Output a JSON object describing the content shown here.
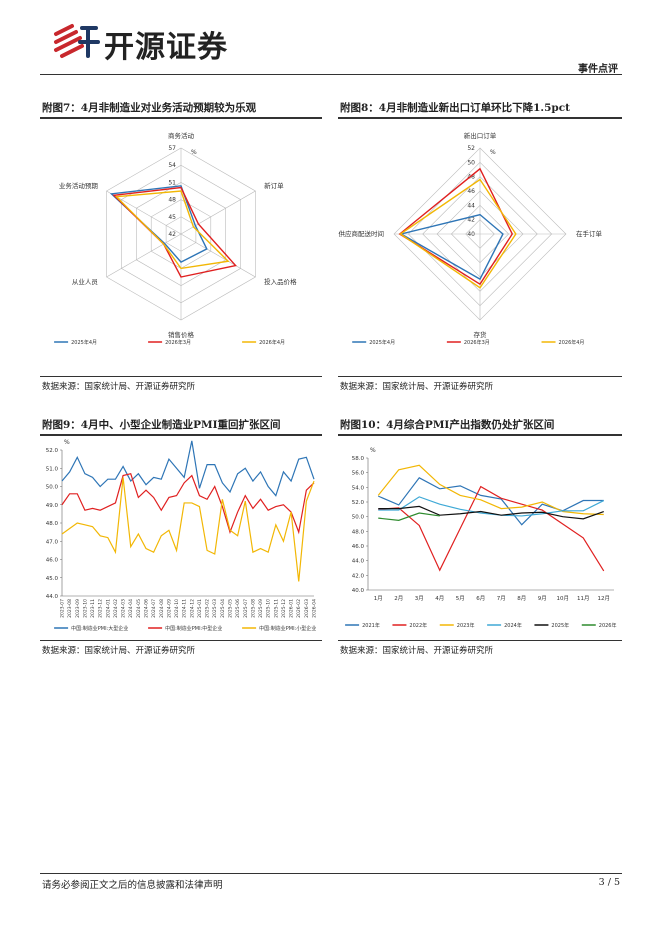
{
  "header": {
    "logo": "开源证券",
    "tag": "事件点评"
  },
  "chart_data": [
    {
      "type": "radar",
      "title": "附图7：4月非制造业对业务活动预期较为乐观",
      "source": "数据来源：国家统计局、开源证券研究所",
      "unit": "%",
      "axes": [
        "商务活动",
        "新订单",
        "投入品价格",
        "销售价格",
        "从业人员",
        "业务活动预期"
      ],
      "rlim": [
        42,
        57
      ],
      "rticks": [
        42,
        45,
        48,
        51,
        54,
        57
      ],
      "series": [
        {
          "name": "2025年4月",
          "color": "#2e75b6",
          "values": [
            50.4,
            44.9,
            47.2,
            46.9,
            45.3,
            56.0
          ]
        },
        {
          "name": "2026年3月",
          "color": "#e02020",
          "values": [
            50.1,
            45.5,
            53.0,
            49.5,
            45.5,
            55.5
          ]
        },
        {
          "name": "2026年4月",
          "color": "#f2b705",
          "values": [
            49.5,
            44.5,
            51.5,
            48.0,
            45.5,
            55.0
          ]
        }
      ]
    },
    {
      "type": "radar",
      "title": "附图8：4月非制造业新出口订单环比下降1.5pct",
      "source": "数据来源：国家统计局、开源证券研究所",
      "unit": "%",
      "axes": [
        "新出口订单",
        "在手订单",
        "存货",
        "供应商配送时间"
      ],
      "rlim": [
        40,
        52
      ],
      "rticks": [
        40,
        42,
        44,
        46,
        48,
        50,
        52
      ],
      "series": [
        {
          "name": "2025年4月",
          "color": "#2e75b6",
          "values": [
            42.7,
            43.2,
            46.3,
            51.0
          ]
        },
        {
          "name": "2026年3月",
          "color": "#e02020",
          "values": [
            49.1,
            44.5,
            47.0,
            51.2
          ]
        },
        {
          "name": "2026年4月",
          "color": "#f2b705",
          "values": [
            47.6,
            45.0,
            47.5,
            51.1
          ]
        }
      ]
    },
    {
      "type": "line",
      "title": "附图9：4月中、小型企业制造业PMI重回扩张区间",
      "source": "数据来源：国家统计局、开源证券研究所",
      "unit": "%",
      "rotate_x": true,
      "categories": [
        "2023-07",
        "2023-08",
        "2023-09",
        "2023-10",
        "2023-11",
        "2023-12",
        "2024-01",
        "2024-02",
        "2024-03",
        "2024-04",
        "2024-05",
        "2024-06",
        "2024-07",
        "2024-08",
        "2024-09",
        "2024-10",
        "2024-11",
        "2024-12",
        "2025-01",
        "2025-02",
        "2025-03",
        "2025-04",
        "2025-05",
        "2025-06",
        "2025-07",
        "2025-08",
        "2025-09",
        "2025-10",
        "2025-11",
        "2025-12",
        "2026-01",
        "2026-02",
        "2026-03",
        "2026-04"
      ],
      "ylim": [
        44,
        52
      ],
      "yticks": [
        {
          "value": 44,
          "label": "44.0"
        },
        {
          "value": 45,
          "label": "45.0"
        },
        {
          "value": 46,
          "label": "46.0"
        },
        {
          "value": 47,
          "label": "47.0"
        },
        {
          "value": 48,
          "label": "48.0"
        },
        {
          "value": 49,
          "label": "49.0"
        },
        {
          "value": 50,
          "label": "50.0"
        },
        {
          "value": 51,
          "label": "51.0"
        },
        {
          "value": 52,
          "label": "52.0"
        }
      ],
      "series": [
        {
          "name": "中国:制造业PMI:大型企业",
          "color": "#2e75b6",
          "values": [
            50.3,
            50.8,
            51.6,
            50.7,
            50.5,
            50.0,
            50.4,
            50.4,
            51.1,
            50.3,
            50.7,
            50.1,
            50.5,
            50.4,
            51.5,
            51.0,
            50.5,
            52.5,
            49.9,
            51.2,
            51.2,
            50.2,
            49.7,
            50.7,
            51.0,
            50.3,
            50.8,
            50.0,
            49.5,
            50.8,
            50.3,
            51.5,
            51.6,
            50.4
          ]
        },
        {
          "name": "中国:制造业PMI:中型企业",
          "color": "#e02020",
          "values": [
            49.0,
            49.6,
            49.6,
            48.7,
            48.8,
            48.7,
            48.9,
            49.1,
            50.6,
            50.7,
            49.4,
            49.8,
            49.4,
            48.7,
            49.4,
            49.5,
            50.2,
            50.6,
            49.5,
            49.3,
            50.0,
            48.9,
            47.5,
            48.6,
            49.5,
            48.8,
            49.3,
            48.7,
            48.9,
            49.0,
            48.6,
            47.5,
            49.8,
            50.2
          ]
        },
        {
          "name": "中国:制造业PMI:小型企业",
          "color": "#f2b705",
          "values": [
            47.4,
            47.7,
            48.0,
            47.9,
            47.8,
            47.3,
            47.2,
            46.4,
            50.5,
            46.7,
            47.4,
            46.6,
            46.4,
            47.3,
            47.6,
            46.5,
            49.1,
            49.1,
            48.9,
            46.5,
            46.3,
            49.3,
            47.6,
            47.3,
            49.2,
            46.4,
            46.6,
            46.4,
            47.9,
            47.0,
            48.6,
            44.8,
            49.2,
            50.3
          ]
        }
      ]
    },
    {
      "type": "line",
      "title": "附图10：4月综合PMI产出指数仍处扩张区间",
      "source": "数据来源：国家统计局、开源证券研究所",
      "unit": "%",
      "rotate_x": false,
      "categories": [
        "1月",
        "2月",
        "3月",
        "4月",
        "5月",
        "6月",
        "7月",
        "8月",
        "9月",
        "10月",
        "11月",
        "12月"
      ],
      "ylim": [
        40,
        58
      ],
      "yticks": [
        {
          "value": 40,
          "label": "40.0"
        },
        {
          "value": 42,
          "label": "42.0"
        },
        {
          "value": 44,
          "label": "44.0"
        },
        {
          "value": 46,
          "label": "46.0"
        },
        {
          "value": 48,
          "label": "48.0"
        },
        {
          "value": 50,
          "label": "50.0"
        },
        {
          "value": 52,
          "label": "52.0"
        },
        {
          "value": 54,
          "label": "54.0"
        },
        {
          "value": 56,
          "label": "56.0"
        },
        {
          "value": 58,
          "label": "58.0"
        }
      ],
      "series": [
        {
          "name": "2021年",
          "color": "#2e75b6",
          "values": [
            52.8,
            51.6,
            55.3,
            53.8,
            54.2,
            52.9,
            52.4,
            48.9,
            51.7,
            50.8,
            52.2,
            52.2
          ]
        },
        {
          "name": "2022年",
          "color": "#e02020",
          "values": [
            51.0,
            51.2,
            48.8,
            42.7,
            48.4,
            54.1,
            52.5,
            51.7,
            50.9,
            49.0,
            47.1,
            42.6
          ]
        },
        {
          "name": "2023年",
          "color": "#f2b705",
          "values": [
            52.9,
            56.4,
            57.0,
            54.4,
            52.9,
            52.3,
            51.1,
            51.3,
            52.0,
            50.7,
            50.4,
            50.3
          ]
        },
        {
          "name": "2024年",
          "color": "#3fa9d6",
          "values": [
            50.9,
            50.9,
            52.7,
            51.7,
            51.0,
            50.5,
            50.2,
            50.1,
            50.4,
            50.8,
            50.8,
            52.2
          ]
        },
        {
          "name": "2025年",
          "color": "#111111",
          "values": [
            51.1,
            51.1,
            51.4,
            50.2,
            50.4,
            50.7,
            50.2,
            50.5,
            50.6,
            50.0,
            49.7,
            50.7
          ]
        },
        {
          "name": "2026年",
          "color": "#2e8b2e",
          "values": [
            49.8,
            49.5,
            50.5,
            50.1,
            null,
            null,
            null,
            null,
            null,
            null,
            null,
            null
          ]
        }
      ]
    }
  ],
  "footer": {
    "disclaimer": "请务必参阅正文之后的信息披露和法律声明",
    "page": "3 / 5"
  }
}
